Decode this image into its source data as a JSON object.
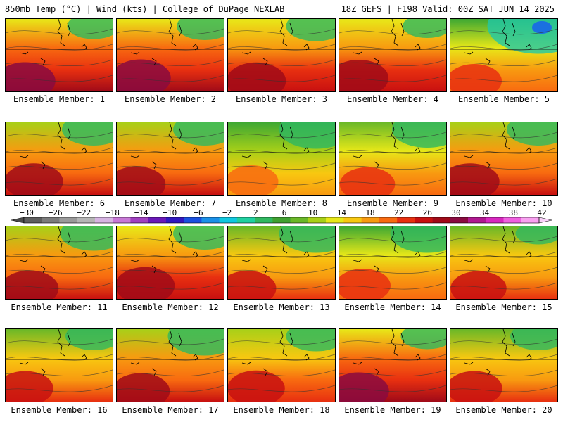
{
  "header": {
    "title_left": "850mb Temp (°C) | Wind (kts) | College of DuPage NEXLAB",
    "title_right": "18Z GEFS | F198 Valid: 00Z SAT JUN 14 2025"
  },
  "members": [
    {
      "label": "Ensemble Member: 1",
      "warmth": 0.85,
      "cold_ne": 0.15
    },
    {
      "label": "Ensemble Member: 2",
      "warmth": 0.85,
      "cold_ne": 0.2
    },
    {
      "label": "Ensemble Member: 3",
      "warmth": 0.82,
      "cold_ne": 0.25
    },
    {
      "label": "Ensemble Member: 4",
      "warmth": 0.8,
      "cold_ne": 0.1
    },
    {
      "label": "Ensemble Member: 5",
      "warmth": 0.6,
      "cold_ne": 0.85
    },
    {
      "label": "Ensemble Member: 6",
      "warmth": 0.78,
      "cold_ne": 0.3
    },
    {
      "label": "Ensemble Member: 7",
      "warmth": 0.75,
      "cold_ne": 0.3
    },
    {
      "label": "Ensemble Member: 8",
      "warmth": 0.5,
      "cold_ne": 0.45
    },
    {
      "label": "Ensemble Member: 9",
      "warmth": 0.62,
      "cold_ne": 0.4
    },
    {
      "label": "Ensemble Member: 10",
      "warmth": 0.78,
      "cold_ne": 0.3
    },
    {
      "label": "Ensemble Member: 11",
      "warmth": 0.75,
      "cold_ne": 0.35
    },
    {
      "label": "Ensemble Member: 12",
      "warmth": 0.82,
      "cold_ne": 0.3
    },
    {
      "label": "Ensemble Member: 13",
      "warmth": 0.7,
      "cold_ne": 0.45
    },
    {
      "label": "Ensemble Member: 14",
      "warmth": 0.6,
      "cold_ne": 0.45
    },
    {
      "label": "Ensemble Member: 15",
      "warmth": 0.65,
      "cold_ne": 0.05
    },
    {
      "label": "Ensemble Member: 16",
      "warmth": 0.65,
      "cold_ne": 0.2
    },
    {
      "label": "Ensemble Member: 17",
      "warmth": 0.75,
      "cold_ne": 0.45
    },
    {
      "label": "Ensemble Member: 18",
      "warmth": 0.72,
      "cold_ne": 0.25
    },
    {
      "label": "Ensemble Member: 19",
      "warmth": 0.85,
      "cold_ne": 0.15
    },
    {
      "label": "Ensemble Member: 20",
      "warmth": 0.65,
      "cold_ne": 0.2
    }
  ],
  "colorbar": {
    "ticks": [
      "−30",
      "−26",
      "−22",
      "−18",
      "−14",
      "−10",
      "−6",
      "−2",
      "2",
      "6",
      "10",
      "14",
      "18",
      "22",
      "26",
      "30",
      "34",
      "38",
      "42"
    ],
    "colors": [
      "#5e5e5e",
      "#7b7b7b",
      "#9a9a9a",
      "#b5b5b5",
      "#d6b4e2",
      "#c778d6",
      "#a040c0",
      "#6a18b8",
      "#3018c0",
      "#1a50e0",
      "#1a90e8",
      "#10c8e0",
      "#20d0a0",
      "#30b860",
      "#40a030",
      "#6ab828",
      "#a8d018",
      "#e8e818",
      "#f8c810",
      "#f89a10",
      "#f86a10",
      "#e83010",
      "#c81010",
      "#a00a18",
      "#8a0a40",
      "#b01890",
      "#d828c0",
      "#f060e0",
      "#f8a0f0"
    ]
  }
}
